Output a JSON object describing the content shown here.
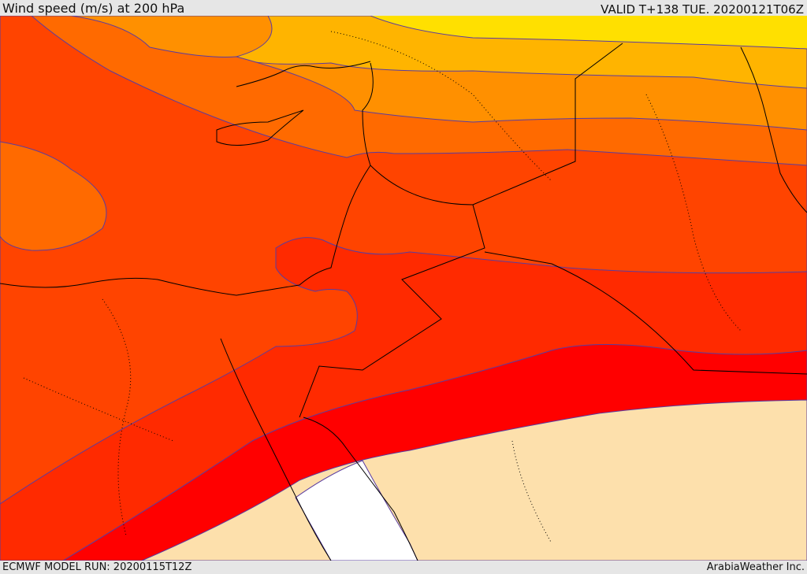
{
  "header": {
    "title": "Wind speed (m/s) at 200 hPa",
    "valid": "VALID T+138 TUE. 20200121T06Z"
  },
  "footer": {
    "model_run": "ECMWF MODEL RUN: 20200115T12Z",
    "credit": "ArabiaWeather Inc."
  },
  "map": {
    "field": "wind speed",
    "level_hPa": 200,
    "unit": "m/s",
    "colors": {
      "lowest": "#ffffff",
      "pale": "#fde0ac",
      "band1": "#ff0000",
      "band2": "#ff2a00",
      "band3": "#ff4400",
      "band4": "#ff6a00",
      "band5": "#ff9000",
      "band6": "#ffb400",
      "band7": "#ffe000",
      "contour": "#5a3ca0",
      "borders": "#000000"
    }
  }
}
